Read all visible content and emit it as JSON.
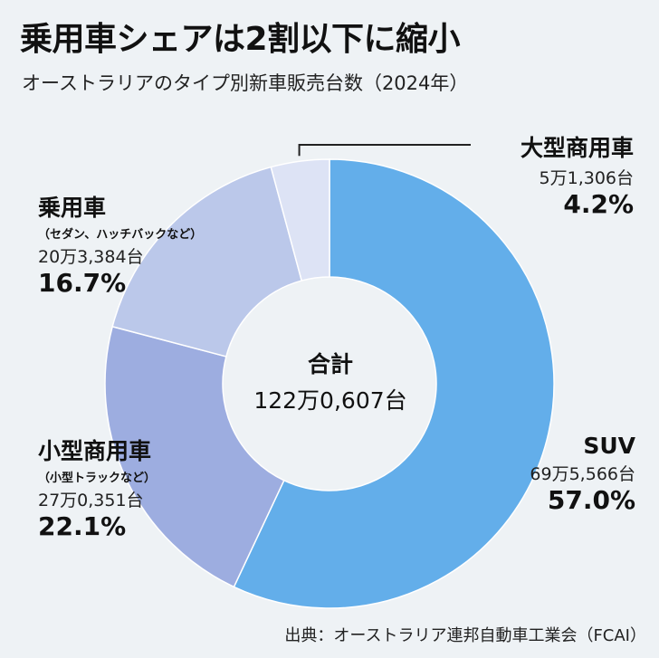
{
  "title": "乗用車シェアは2割以下に縮小",
  "subtitle": "オーストラリアのタイプ別新車販売台数（2024年）",
  "source": "出典：オーストラリア連邦自動車工業会（FCAI）",
  "chart_data": {
    "type": "pie",
    "title": "オーストラリアのタイプ別新車販売台数（2024年）",
    "center_label": "合計",
    "center_value": "122万0,607台",
    "slices": [
      {
        "name": "SUV",
        "sub": "",
        "count": "69万5,566台",
        "value": 57.0,
        "pct_label": "57.0%",
        "color": "#63aeea"
      },
      {
        "name": "小型商用車",
        "sub": "（小型トラックなど）",
        "count": "27万0,351台",
        "value": 22.1,
        "pct_label": "22.1%",
        "color": "#9dade0"
      },
      {
        "name": "乗用車",
        "sub": "（セダン、ハッチバックなど）",
        "count": "20万3,384台",
        "value": 16.7,
        "pct_label": "16.7%",
        "color": "#bbc8ea"
      },
      {
        "name": "大型商用車",
        "sub": "",
        "count": "5万1,306台",
        "value": 4.2,
        "pct_label": "4.2%",
        "color": "#dde3f5"
      }
    ]
  }
}
